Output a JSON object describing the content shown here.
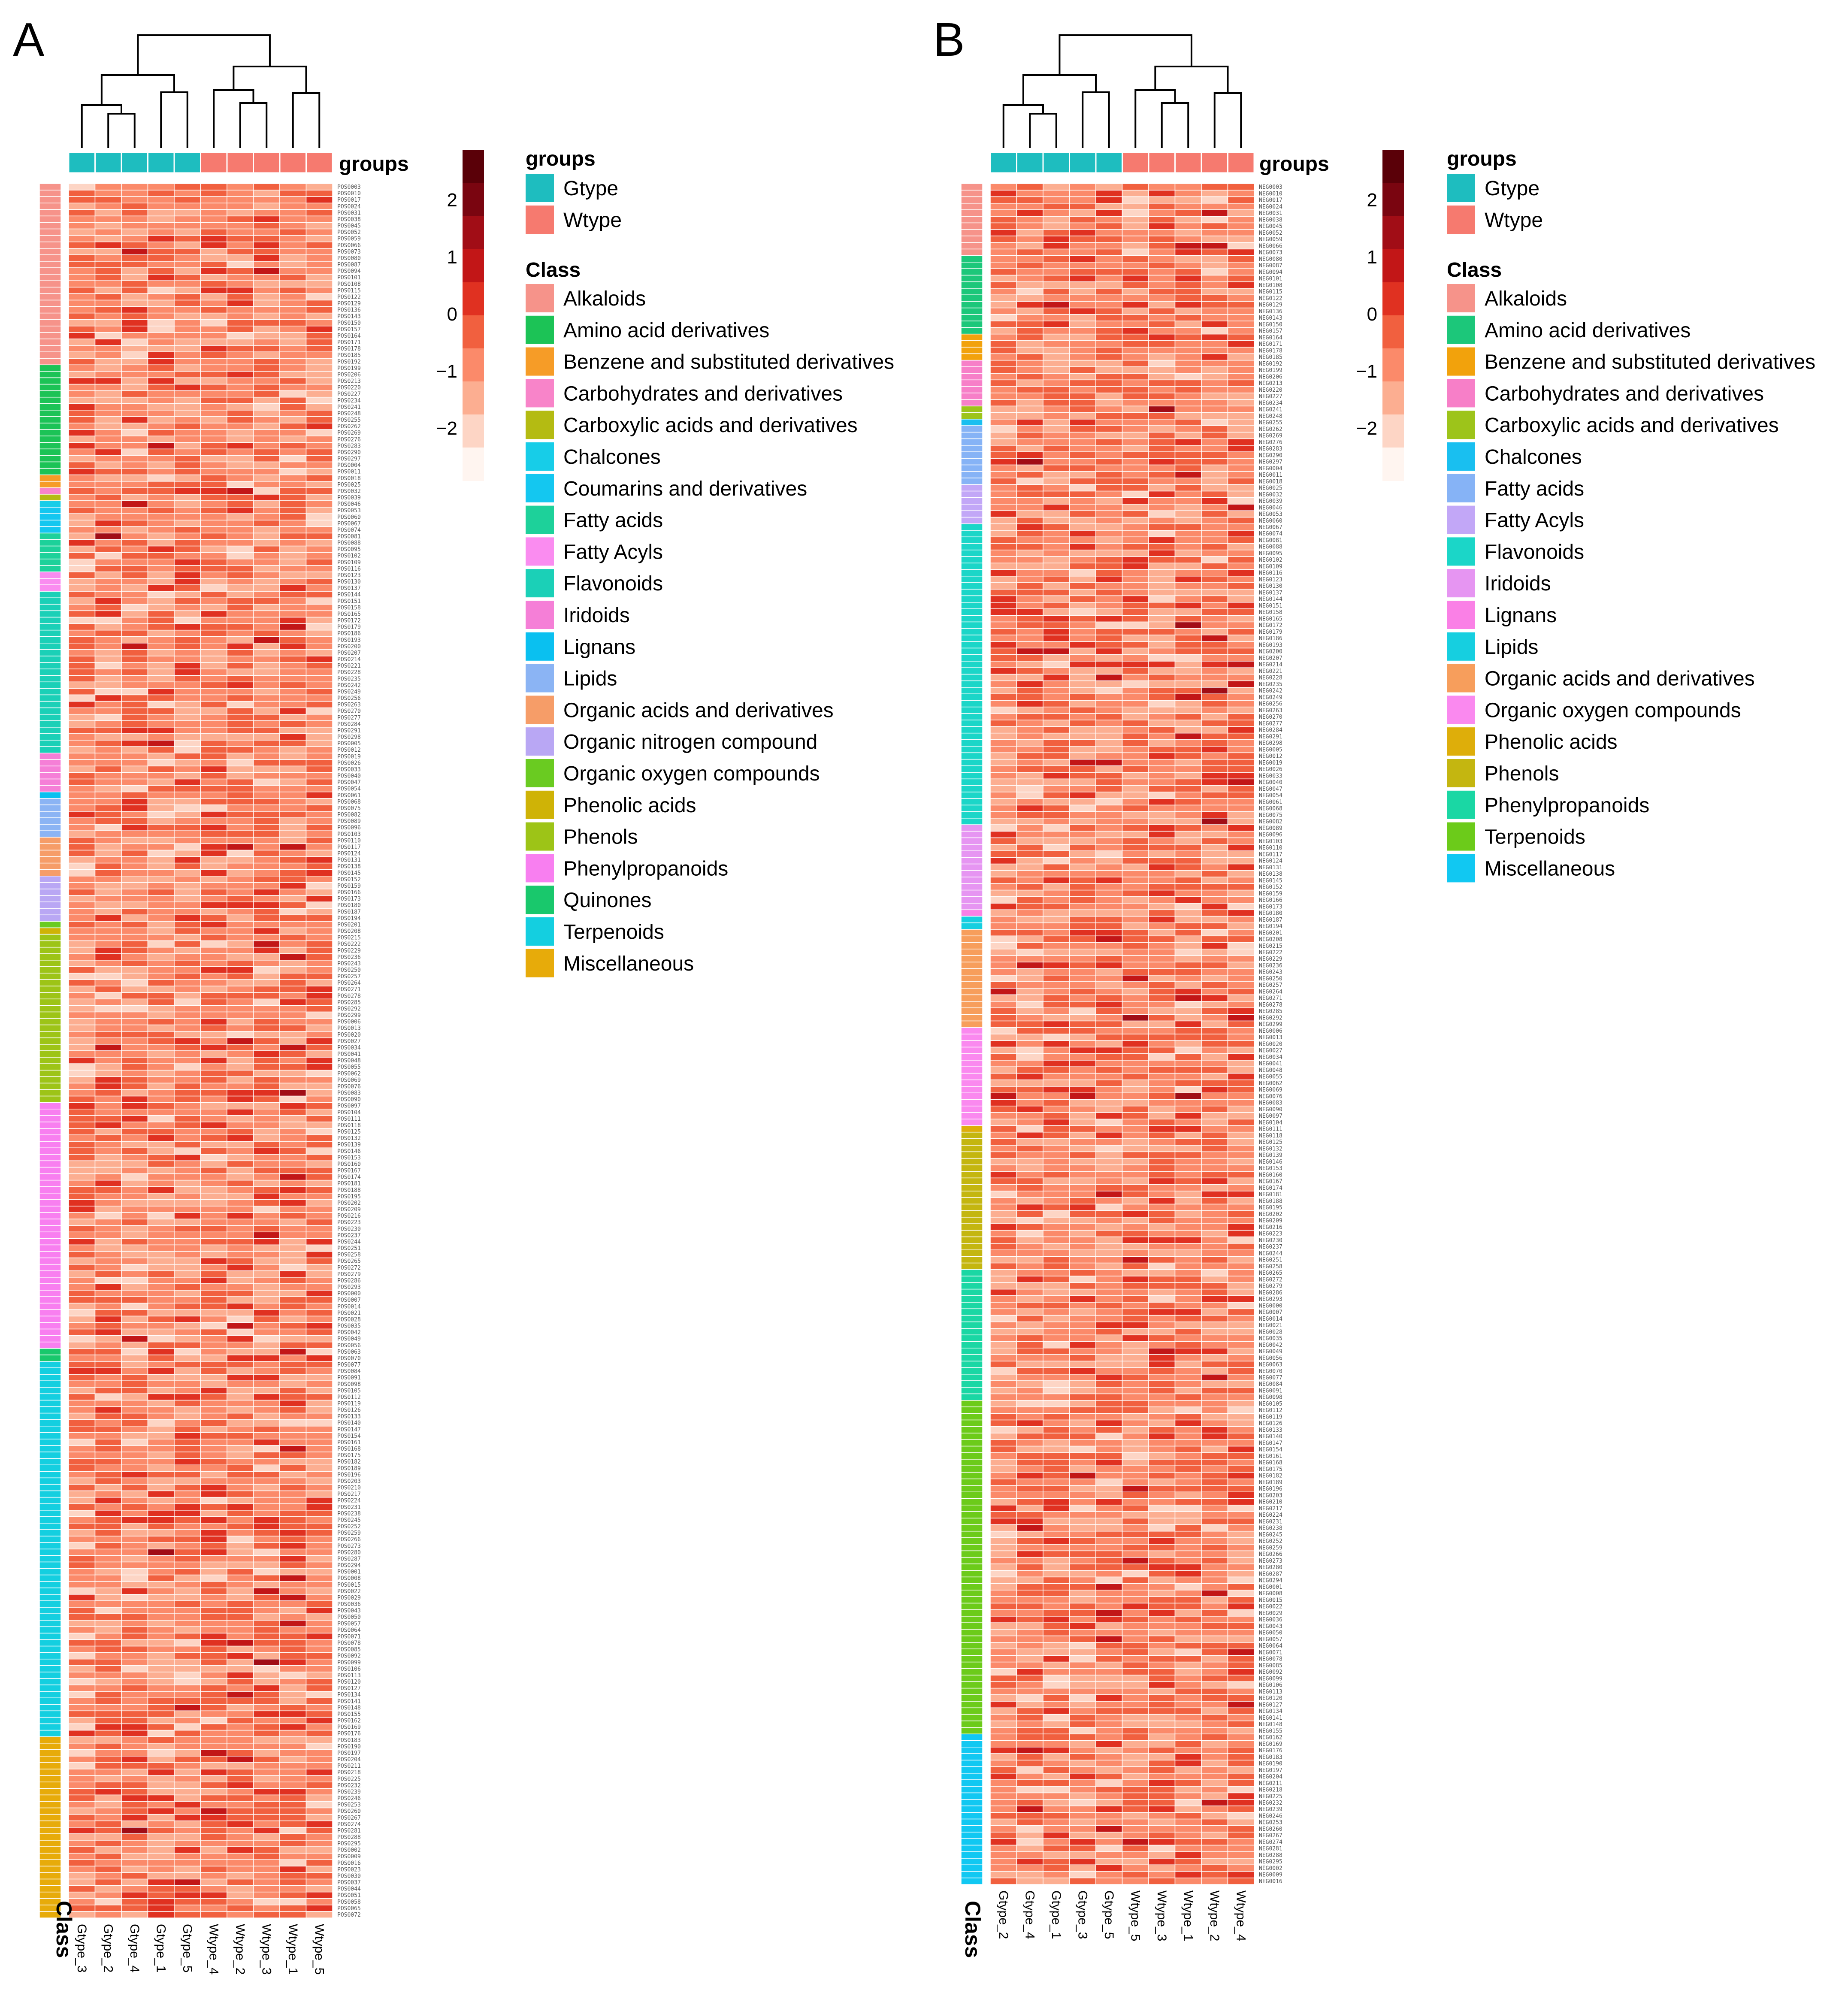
{
  "chart_data": [
    {
      "type": "heatmap",
      "panel": "A",
      "title": "",
      "columns": [
        "Gtype_3",
        "Gtype_2",
        "Gtype_4",
        "Gtype_1",
        "Gtype_5",
        "Wtype_4",
        "Wtype_2",
        "Wtype_3",
        "Wtype_1",
        "Wtype_5"
      ],
      "column_groups": [
        "Gtype",
        "Gtype",
        "Gtype",
        "Gtype",
        "Gtype",
        "Wtype",
        "Wtype",
        "Wtype",
        "Wtype",
        "Wtype"
      ],
      "row_prefix": "POS",
      "color_scale": {
        "min": -2.5,
        "max": 2.5,
        "ticks": [
          "2",
          "1",
          "0",
          "−1",
          "−2"
        ],
        "colors": [
          "#fff5f0",
          "#fdd5c5",
          "#fcae91",
          "#fb8a6a",
          "#f1603f",
          "#e03121",
          "#c21617",
          "#a10d16",
          "#7a0510",
          "#5a0008"
        ]
      },
      "class_rows": [
        {
          "class": "Alkaloids",
          "rows": 28
        },
        {
          "class": "Amino acid derivatives",
          "rows": 17
        },
        {
          "class": "Benzene and substituted derivatives",
          "rows": 2
        },
        {
          "class": "Carbohydrates and derivatives",
          "rows": 1
        },
        {
          "class": "Carboxylic acids and derivatives",
          "rows": 1
        },
        {
          "class": "Chalcones",
          "rows": 1
        },
        {
          "class": "Coumarins and derivatives",
          "rows": 4
        },
        {
          "class": "Fatty acids",
          "rows": 6
        },
        {
          "class": "Fatty Acyls",
          "rows": 3
        },
        {
          "class": "Flavonoids",
          "rows": 25
        },
        {
          "class": "Iridoids",
          "rows": 6
        },
        {
          "class": "Lignans",
          "rows": 1
        },
        {
          "class": "Lipids",
          "rows": 6
        },
        {
          "class": "Organic acids and derivatives",
          "rows": 6
        },
        {
          "class": "Organic nitrogen compound",
          "rows": 7
        },
        {
          "class": "Organic oxygen compounds",
          "rows": 1
        },
        {
          "class": "Phenolic acids",
          "rows": 1
        },
        {
          "class": "Phenols",
          "rows": 26
        },
        {
          "class": "Phenylpropanoids",
          "rows": 38
        },
        {
          "class": "Quinones",
          "rows": 2
        },
        {
          "class": "Terpenoids",
          "rows": 58
        },
        {
          "class": "Miscellaneous",
          "rows": 28
        }
      ]
    },
    {
      "type": "heatmap",
      "panel": "B",
      "title": "",
      "columns": [
        "Gtype_2",
        "Gtype_4",
        "Gtype_1",
        "Gtype_3",
        "Gtype_5",
        "Wtype_5",
        "Wtype_3",
        "Wtype_1",
        "Wtype_2",
        "Wtype_4"
      ],
      "column_groups": [
        "Gtype",
        "Gtype",
        "Gtype",
        "Gtype",
        "Gtype",
        "Wtype",
        "Wtype",
        "Wtype",
        "Wtype",
        "Wtype"
      ],
      "row_prefix": "NEG",
      "color_scale": {
        "min": -2.5,
        "max": 2.5,
        "ticks": [
          "2",
          "1",
          "0",
          "−1",
          "−2"
        ],
        "colors": [
          "#fff5f0",
          "#fdd5c5",
          "#fcae91",
          "#fb8a6a",
          "#f1603f",
          "#e03121",
          "#c21617",
          "#a10d16",
          "#7a0510",
          "#5a0008"
        ]
      },
      "class_rows": [
        {
          "class": "Alkaloids",
          "rows": 11
        },
        {
          "class": "Amino acid derivatives",
          "rows": 12
        },
        {
          "class": "Benzene and substituted derivatives",
          "rows": 4
        },
        {
          "class": "Carbohydrates and derivatives",
          "rows": 7
        },
        {
          "class": "Carboxylic acids and derivatives",
          "rows": 2
        },
        {
          "class": "Chalcones",
          "rows": 1
        },
        {
          "class": "Fatty acids",
          "rows": 9
        },
        {
          "class": "Fatty Acyls",
          "rows": 6
        },
        {
          "class": "Flavonoids",
          "rows": 46
        },
        {
          "class": "Iridoids",
          "rows": 13
        },
        {
          "class": "Lignans",
          "rows": 1
        },
        {
          "class": "Lipids",
          "rows": 2
        },
        {
          "class": "Organic acids and derivatives",
          "rows": 15
        },
        {
          "class": "Organic oxygen compounds",
          "rows": 15
        },
        {
          "class": "Phenolic acids",
          "rows": 1
        },
        {
          "class": "Phenols",
          "rows": 21
        },
        {
          "class": "Phenylpropanoids",
          "rows": 20
        },
        {
          "class": "Terpenoids",
          "rows": 51
        },
        {
          "class": "Miscellaneous",
          "rows": 23
        }
      ]
    }
  ],
  "panelA": {
    "letter": "A",
    "groups_label": "groups",
    "class_axis_label": "Class",
    "legend_groups_title": "groups",
    "legend_class_title": "Class",
    "groups_legend": [
      {
        "label": "Gtype",
        "color": "#1ebdbf"
      },
      {
        "label": "Wtype",
        "color": "#f67a6f"
      }
    ],
    "class_legend": [
      {
        "label": "Alkaloids",
        "color": "#f6938a"
      },
      {
        "label": "Amino acid derivatives",
        "color": "#1cc356"
      },
      {
        "label": "Benzene and substituted derivatives",
        "color": "#f69c27"
      },
      {
        "label": "Carbohydrates and derivatives",
        "color": "#f884c9"
      },
      {
        "label": "Carboxylic acids and derivatives",
        "color": "#b4bb12"
      },
      {
        "label": "Chalcones",
        "color": "#17cde8"
      },
      {
        "label": "Coumarins and derivatives",
        "color": "#14c7f0"
      },
      {
        "label": "Fatty acids",
        "color": "#1dd19a"
      },
      {
        "label": "Fatty Acyls",
        "color": "#fa8cf0"
      },
      {
        "label": "Flavonoids",
        "color": "#1bd0b7"
      },
      {
        "label": "Iridoids",
        "color": "#f57fd7"
      },
      {
        "label": "Lignans",
        "color": "#0ac0f0"
      },
      {
        "label": "Lipids",
        "color": "#8bb4f4"
      },
      {
        "label": "Organic acids and derivatives",
        "color": "#f69d68"
      },
      {
        "label": "Organic nitrogen compound",
        "color": "#b9a7f4"
      },
      {
        "label": "Organic oxygen compounds",
        "color": "#6acb21"
      },
      {
        "label": "Phenolic acids",
        "color": "#cfb306"
      },
      {
        "label": "Phenols",
        "color": "#9dc417"
      },
      {
        "label": "Phenylpropanoids",
        "color": "#f87ff0"
      },
      {
        "label": "Quinones",
        "color": "#19c86c"
      },
      {
        "label": "Terpenoids",
        "color": "#14cfe0"
      },
      {
        "label": "Miscellaneous",
        "color": "#e7ab0a"
      }
    ]
  },
  "panelB": {
    "letter": "B",
    "groups_label": "groups",
    "class_axis_label": "Class",
    "legend_groups_title": "groups",
    "legend_class_title": "Class",
    "groups_legend": [
      {
        "label": "Gtype",
        "color": "#1ebdbf"
      },
      {
        "label": "Wtype",
        "color": "#f67a6f"
      }
    ],
    "class_legend": [
      {
        "label": "Alkaloids",
        "color": "#f6938a"
      },
      {
        "label": "Amino acid derivatives",
        "color": "#1cc77a"
      },
      {
        "label": "Benzene and substituted derivatives",
        "color": "#f2a20c"
      },
      {
        "label": "Carbohydrates and derivatives",
        "color": "#f77fc8"
      },
      {
        "label": "Carboxylic acids and derivatives",
        "color": "#9dc41a"
      },
      {
        "label": "Chalcones",
        "color": "#19bff0"
      },
      {
        "label": "Fatty acids",
        "color": "#86b3f6"
      },
      {
        "label": "Fatty Acyls",
        "color": "#c2a7f7"
      },
      {
        "label": "Flavonoids",
        "color": "#1bd6c8"
      },
      {
        "label": "Iridoids",
        "color": "#e695f2"
      },
      {
        "label": "Lignans",
        "color": "#fa80e6"
      },
      {
        "label": "Lipids",
        "color": "#16cfe0"
      },
      {
        "label": "Organic acids and derivatives",
        "color": "#f79e5c"
      },
      {
        "label": "Organic oxygen compounds",
        "color": "#fa89ef"
      },
      {
        "label": "Phenolic acids",
        "color": "#deae0a"
      },
      {
        "label": "Phenols",
        "color": "#c4b610"
      },
      {
        "label": "Phenylpropanoids",
        "color": "#1ad7a4"
      },
      {
        "label": "Terpenoids",
        "color": "#6ccb1a"
      },
      {
        "label": "Miscellaneous",
        "color": "#11c8f2"
      }
    ]
  }
}
